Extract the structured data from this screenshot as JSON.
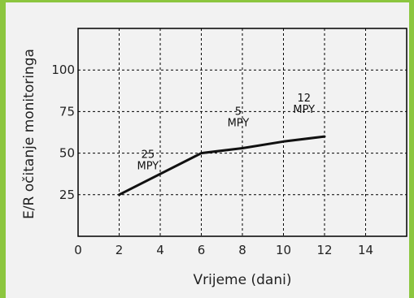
{
  "chart_data": {
    "type": "line",
    "xlabel": "Vrijeme (dani)",
    "ylabel": "E/R očitanje monitoringa",
    "xlim": [
      0,
      16
    ],
    "ylim": [
      0,
      125
    ],
    "x_ticks": [
      0,
      2,
      4,
      6,
      8,
      10,
      12,
      14
    ],
    "y_ticks": [
      25,
      50,
      75,
      100
    ],
    "grid": true,
    "series": [
      {
        "x": [
          2,
          6,
          8,
          10,
          12
        ],
        "y": [
          25,
          50,
          53,
          57,
          60
        ]
      }
    ],
    "annotations": [
      {
        "lines": [
          "25",
          "MPY"
        ],
        "x": 3.4,
        "y": 47
      },
      {
        "lines": [
          "5",
          "MPY"
        ],
        "x": 7.8,
        "y": 73
      },
      {
        "lines": [
          "12",
          "MPY"
        ],
        "x": 11.0,
        "y": 81
      }
    ]
  },
  "colors": {
    "frame": "#8cc63f",
    "background": "#f2f2f2",
    "line": "#111111"
  }
}
